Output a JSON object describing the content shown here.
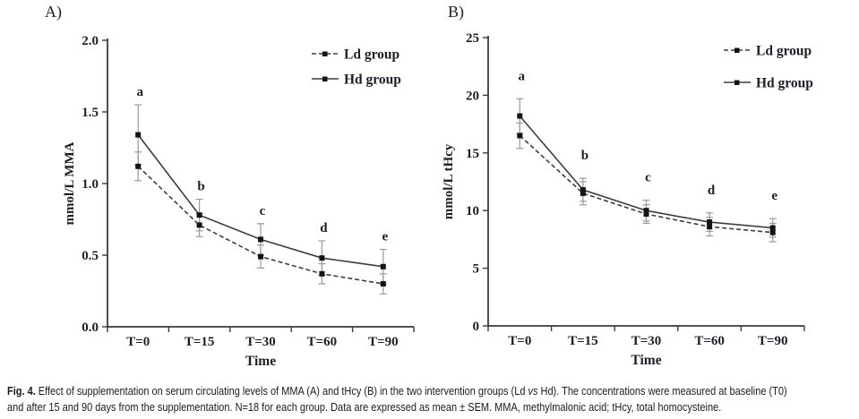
{
  "figure": {
    "panel_a_label": "A)",
    "panel_b_label": "B)"
  },
  "colors": {
    "text": "#1e1e28",
    "axis": "#3a3a3a",
    "series_line": "#3d3d3d",
    "marker": "#141414",
    "error_bar": "#9a9a9a",
    "background": "#ffffff"
  },
  "chart_data": [
    {
      "id": "A",
      "type": "line",
      "title": "",
      "xlabel": "Time",
      "ylabel": "mmol/L MMA",
      "categories": [
        "T=0",
        "T=15",
        "T=30",
        "T=60",
        "T=90"
      ],
      "ylim": [
        0.0,
        2.0
      ],
      "yticks": [
        "0.0",
        "0.5",
        "1.0",
        "1.5",
        "2.0"
      ],
      "grid": false,
      "legend_position": "top-right",
      "annotations": [
        "a",
        "b",
        "c",
        "d",
        "e"
      ],
      "error_bars": "SEM",
      "series": [
        {
          "name": "Ld group",
          "style": "dashed",
          "values": [
            1.12,
            0.71,
            0.49,
            0.37,
            0.3
          ],
          "sem": [
            0.1,
            0.08,
            0.08,
            0.07,
            0.07
          ]
        },
        {
          "name": "Hd group",
          "style": "solid",
          "values": [
            1.34,
            0.78,
            0.61,
            0.48,
            0.42
          ],
          "sem": [
            0.21,
            0.11,
            0.11,
            0.12,
            0.12
          ]
        }
      ]
    },
    {
      "id": "B",
      "type": "line",
      "title": "",
      "xlabel": "Time",
      "ylabel": "mmol/L tHcy",
      "categories": [
        "T=0",
        "T=15",
        "T=30",
        "T=60",
        "T=90"
      ],
      "ylim": [
        0,
        25
      ],
      "yticks": [
        "0",
        "5",
        "10",
        "15",
        "20",
        "25"
      ],
      "grid": false,
      "legend_position": "top-right",
      "annotations": [
        "a",
        "b",
        "c",
        "d",
        "e"
      ],
      "error_bars": "SEM",
      "series": [
        {
          "name": "Ld group",
          "style": "dashed",
          "values": [
            16.5,
            11.5,
            9.7,
            8.6,
            8.1
          ],
          "sem": [
            1.1,
            1.0,
            0.8,
            0.8,
            0.8
          ]
        },
        {
          "name": "Hd group",
          "style": "solid",
          "values": [
            18.2,
            11.8,
            10.0,
            9.0,
            8.5
          ],
          "sem": [
            1.5,
            1.0,
            0.9,
            0.8,
            0.8
          ]
        }
      ]
    }
  ],
  "caption": {
    "label": "Fig. 4.",
    "line1_pre": " Effect of supplementation on serum circulating levels of MMA (A) and tHcy (B) in the two intervention groups (Ld ",
    "vs": "vs",
    "line1_post": " Hd). The concentrations were measured at baseline (T0)",
    "line2": "and after 15 and 90 days from the supplementation. N=18 for each group. Data are expressed as mean ± SEM. MMA, methylmalonic acid; tHcy, total homocysteine."
  }
}
